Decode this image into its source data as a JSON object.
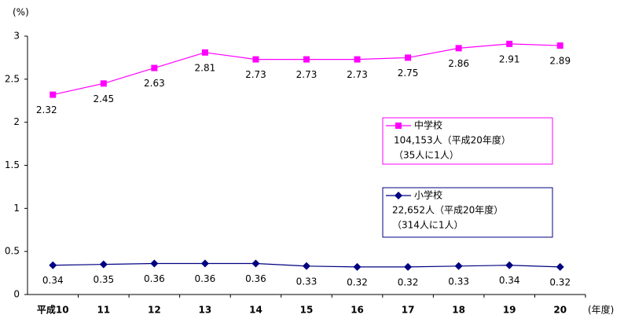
{
  "chart_data": {
    "type": "line",
    "y_label": "(%)",
    "x_label": "(年度)",
    "categories": [
      "平成10",
      "11",
      "12",
      "13",
      "14",
      "15",
      "16",
      "17",
      "18",
      "19",
      "20"
    ],
    "series": [
      {
        "name": "中学校",
        "color": "#ff00ff",
        "marker": "square",
        "values": [
          2.32,
          2.45,
          2.63,
          2.81,
          2.73,
          2.73,
          2.73,
          2.75,
          2.86,
          2.91,
          2.89
        ],
        "notes": [
          "104,153人（平成20年度）",
          "（35人に1人）"
        ]
      },
      {
        "name": "小学校",
        "color": "#000080",
        "marker": "diamond",
        "values": [
          0.34,
          0.35,
          0.36,
          0.36,
          0.36,
          0.33,
          0.32,
          0.32,
          0.33,
          0.34,
          0.32
        ],
        "notes": [
          "22,652人（平成20年度）",
          "（314人に1人）"
        ]
      }
    ],
    "ylim": [
      0,
      3
    ],
    "yticks": [
      0,
      0.5,
      1,
      1.5,
      2,
      2.5,
      3
    ],
    "grid": false
  }
}
